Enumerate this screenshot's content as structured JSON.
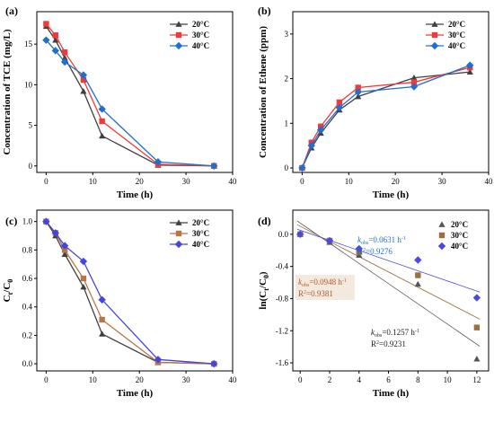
{
  "chart_data": [
    {
      "panel": "(a)",
      "type": "line",
      "xlabel": "Time (h)",
      "ylabel": "Concentration of TCE (mg/L)",
      "xlim": [
        -2,
        40
      ],
      "ylim": [
        -0.8,
        19
      ],
      "xticks": [
        0,
        10,
        20,
        30,
        40
      ],
      "yticks": [
        0,
        5,
        10,
        15
      ],
      "legend_position": "top-right",
      "x": [
        0,
        2,
        4,
        8,
        12,
        24,
        36
      ],
      "series": [
        {
          "name": "20°C",
          "color": "#404040",
          "marker": "triangle",
          "values": [
            17.2,
            15.5,
            13.3,
            9.2,
            3.7,
            0.1,
            0.0
          ]
        },
        {
          "name": "30°C",
          "color": "#ee3a3a",
          "marker": "square",
          "values": [
            17.5,
            16.1,
            14.0,
            10.6,
            5.5,
            0.2,
            0.0
          ]
        },
        {
          "name": "40°C",
          "color": "#1f6fd0",
          "marker": "diamond",
          "values": [
            15.5,
            14.2,
            12.8,
            11.2,
            7.0,
            0.5,
            0.0
          ]
        }
      ]
    },
    {
      "panel": "(b)",
      "type": "line",
      "xlabel": "Time (h)",
      "ylabel": "Concentration of Ethene (ppm)",
      "xlim": [
        -2,
        40
      ],
      "ylim": [
        -0.1,
        3.5
      ],
      "xticks": [
        0,
        10,
        20,
        30,
        40
      ],
      "yticks": [
        0,
        1,
        2,
        3
      ],
      "legend_position": "top-right",
      "x": [
        0,
        2,
        4,
        8,
        12,
        24,
        36
      ],
      "series": [
        {
          "name": "20°C",
          "color": "#404040",
          "marker": "triangle",
          "values": [
            0.0,
            0.45,
            0.78,
            1.3,
            1.6,
            2.02,
            2.15
          ]
        },
        {
          "name": "30°C",
          "color": "#ee3a3a",
          "marker": "square",
          "values": [
            0.0,
            0.57,
            0.93,
            1.47,
            1.8,
            1.92,
            2.25
          ]
        },
        {
          "name": "40°C",
          "color": "#1f6fd0",
          "marker": "diamond",
          "values": [
            0.0,
            0.5,
            0.85,
            1.35,
            1.7,
            1.82,
            2.3
          ]
        }
      ]
    },
    {
      "panel": "(c)",
      "type": "line",
      "xlabel": "Time (h)",
      "ylabel_main": "C",
      "ylabel_sub1": "t",
      "ylabel_mid": "/C",
      "ylabel_sub2": "0",
      "xlim": [
        -2,
        40
      ],
      "ylim": [
        -0.05,
        1.08
      ],
      "xticks": [
        0,
        10,
        20,
        30,
        40
      ],
      "yticks": [
        0.0,
        0.2,
        0.4,
        0.6,
        0.8,
        1.0
      ],
      "legend_position": "top-right",
      "x": [
        0,
        2,
        4,
        8,
        12,
        24,
        36
      ],
      "series": [
        {
          "name": "20°C",
          "color": "#404040",
          "marker": "triangle",
          "values": [
            1.0,
            0.9,
            0.77,
            0.54,
            0.21,
            0.01,
            0.0
          ]
        },
        {
          "name": "30°C",
          "color": "#b5764a",
          "marker": "square",
          "values": [
            1.0,
            0.92,
            0.8,
            0.6,
            0.31,
            0.01,
            0.0
          ]
        },
        {
          "name": "40°C",
          "color": "#4444e0",
          "marker": "diamond",
          "values": [
            1.0,
            0.92,
            0.83,
            0.72,
            0.45,
            0.03,
            0.0
          ]
        }
      ]
    },
    {
      "panel": "(d)",
      "type": "scatter",
      "xlabel": "Time (h)",
      "ylabel_pre": "ln(C",
      "ylabel_sub1": "t",
      "ylabel_mid": "/C",
      "ylabel_sub2": "0",
      "ylabel_post": ")",
      "xlim": [
        -0.5,
        12.8
      ],
      "ylim": [
        -1.7,
        0.3
      ],
      "xticks": [
        0,
        2,
        4,
        6,
        8,
        10,
        12
      ],
      "yticks": [
        0.0,
        -0.4,
        -0.8,
        -1.2,
        -1.6
      ],
      "legend_position": "top-right",
      "x": [
        0,
        2,
        4,
        8,
        12
      ],
      "series": [
        {
          "name": "20°C",
          "color": "#555555",
          "marker": "triangle",
          "values": [
            0.0,
            -0.1,
            -0.26,
            -0.62,
            -1.55
          ],
          "fit": {
            "slope": -0.1257,
            "intercept": 0.14
          },
          "k_label_pre": "k",
          "k_label_sub": "obs",
          "k_label_post": "=0.1257 h",
          "k_label_sup": "-1",
          "r2_pre": "R",
          "r2_sup": "2",
          "r2_post": "=0.9231"
        },
        {
          "name": "30°C",
          "color": "#9c6f3d",
          "marker": "square",
          "values": [
            0.0,
            -0.08,
            -0.22,
            -0.51,
            -1.16
          ],
          "fit": {
            "slope": -0.0948,
            "intercept": 0.1
          },
          "k_label_pre": "k",
          "k_label_sub": "obs",
          "k_label_post": "=0.0948 h",
          "k_label_sup": "-1",
          "r2_pre": "R",
          "r2_sup": "2",
          "r2_post": "=0.9381"
        },
        {
          "name": "40°C",
          "color": "#4a4ae0",
          "marker": "diamond",
          "values": [
            0.0,
            -0.08,
            -0.18,
            -0.32,
            -0.79
          ],
          "fit": {
            "slope": -0.0631,
            "intercept": 0.05
          },
          "k_label_pre": "k",
          "k_label_sub": "obs",
          "k_label_post": "=0.0631 h",
          "k_label_sup": "-1",
          "r2_pre": "R",
          "r2_sup": "2",
          "r2_post": "=0.9276"
        }
      ],
      "annotation_colors": [
        "#222222",
        "#b05a2a",
        "#1f6fd0"
      ]
    }
  ]
}
